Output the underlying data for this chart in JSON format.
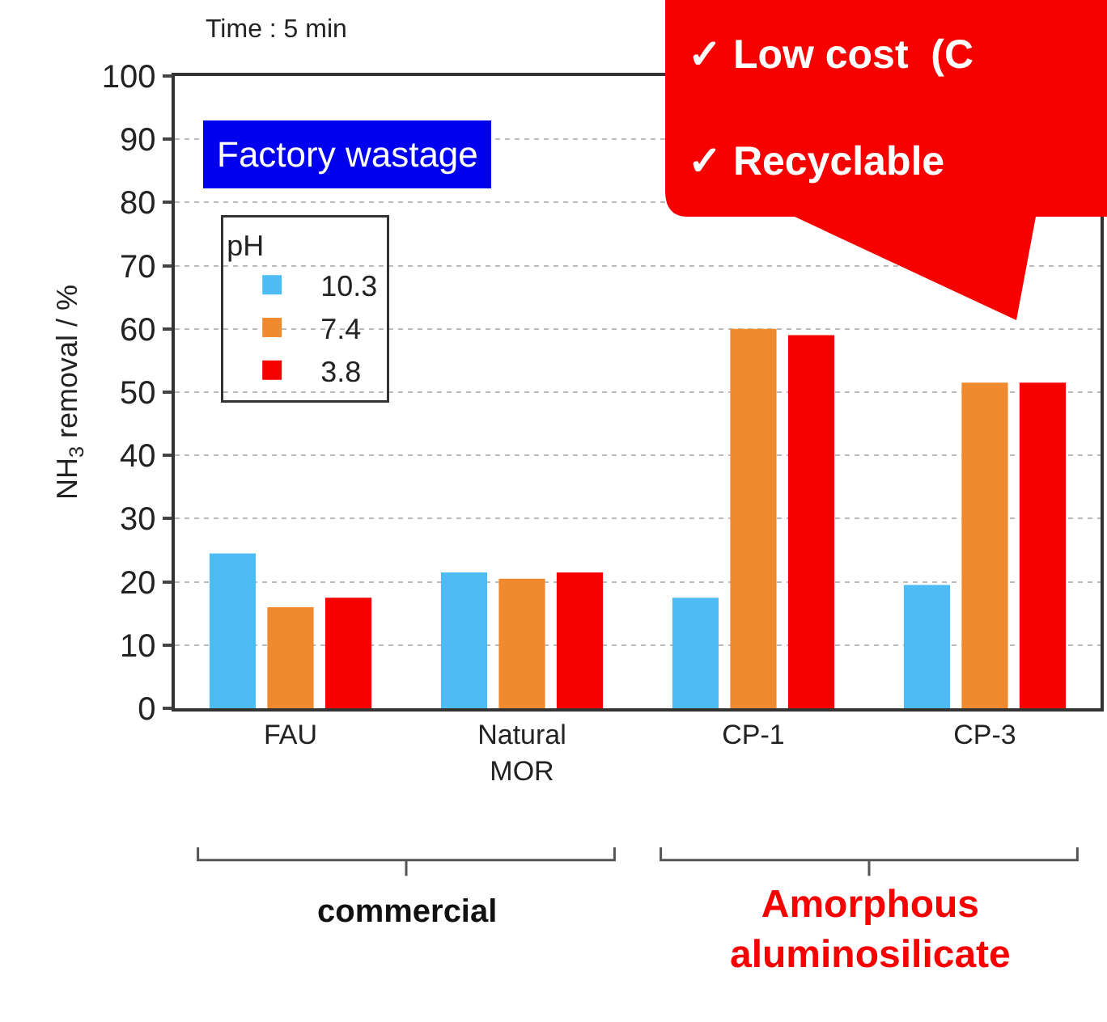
{
  "chart_data": {
    "type": "bar",
    "ylabel": "NH$_{3}$ removal / %",
    "legend_title": "pH",
    "categories": [
      "FAU",
      "Natural\nMOR",
      "CP-1",
      "CP-3"
    ],
    "series": [
      {
        "name": "10.3",
        "color": "#4dbcf5",
        "values": [
          24.5,
          21.5,
          17.5,
          19.5
        ]
      },
      {
        "name": "7.4",
        "color": "#ef8a2e",
        "values": [
          16,
          20.5,
          60,
          51.5
        ]
      },
      {
        "name": "3.8",
        "color": "#f60000",
        "values": [
          17.5,
          21.5,
          59,
          51.5
        ]
      }
    ],
    "ylim": [
      0,
      100
    ],
    "yticks": [
      0,
      10,
      20,
      30,
      40,
      50,
      60,
      70,
      80,
      90,
      100
    ],
    "grid": "y",
    "legend": "top left",
    "annotations": [
      "Time : 5 min",
      "Factory wastage",
      "✓ Low cost  (C",
      "✓ Recyclable",
      "commercial",
      "Amorphous\naluminosilicate"
    ]
  }
}
